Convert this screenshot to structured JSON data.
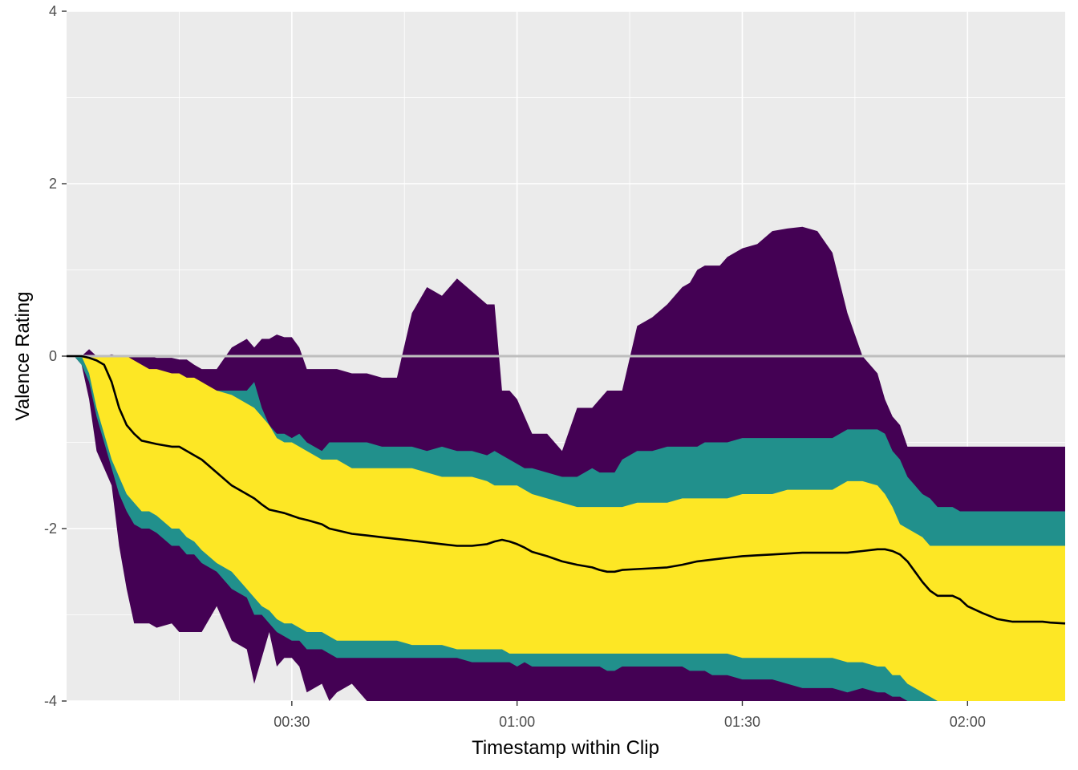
{
  "chart_data": {
    "type": "area",
    "xlabel": "Timestamp within Clip",
    "ylabel": "Valence Rating",
    "x_unit": "seconds",
    "xlim": [
      0,
      133
    ],
    "ylim": [
      -4,
      4
    ],
    "x_ticks": [
      {
        "value": 30,
        "label": "00:30"
      },
      {
        "value": 60,
        "label": "01:00"
      },
      {
        "value": 90,
        "label": "01:30"
      },
      {
        "value": 120,
        "label": "02:00"
      }
    ],
    "y_ticks": [
      {
        "value": -4,
        "label": "-4"
      },
      {
        "value": -2,
        "label": "-2"
      },
      {
        "value": 0,
        "label": "0"
      },
      {
        "value": 2,
        "label": "2"
      },
      {
        "value": 4,
        "label": "4"
      }
    ],
    "y_minor_gridlines": [
      -3,
      -1,
      1,
      3
    ],
    "x_minor_gridlines": [
      15,
      45,
      75,
      105
    ],
    "grid": true,
    "panel_background": "#EBEBEB",
    "reference_line": {
      "y": 0,
      "color": "#BEBEBE"
    },
    "x": [
      0,
      1,
      2,
      3,
      4,
      5,
      6,
      7,
      8,
      9,
      10,
      11,
      12,
      14,
      15,
      16,
      17,
      18,
      20,
      22,
      24,
      25,
      26,
      27,
      28,
      29,
      30,
      31,
      32,
      34,
      35,
      36,
      38,
      40,
      42,
      44,
      46,
      48,
      50,
      52,
      54,
      56,
      57,
      58,
      59,
      60,
      61,
      62,
      64,
      66,
      68,
      70,
      71,
      72,
      73,
      74,
      76,
      78,
      80,
      82,
      83,
      84,
      85,
      86,
      87,
      88,
      90,
      92,
      94,
      96,
      98,
      100,
      102,
      104,
      106,
      108,
      109,
      110,
      111,
      112,
      113,
      114,
      115,
      116,
      118,
      119,
      120,
      122,
      124,
      126,
      128,
      129,
      130,
      131,
      133
    ],
    "series": [
      {
        "role": "outer-band",
        "color": "#440154",
        "upper": [
          0,
          0,
          0,
          0.08,
          0,
          0,
          0.02,
          0,
          0,
          0,
          0,
          0,
          -0.02,
          -0.02,
          -0.04,
          -0.04,
          -0.1,
          -0.15,
          -0.15,
          0.1,
          0.2,
          0.1,
          0.2,
          0.2,
          0.25,
          0.22,
          0.22,
          0.1,
          -0.15,
          -0.15,
          -0.15,
          -0.15,
          -0.2,
          -0.2,
          -0.25,
          -0.25,
          0.5,
          0.8,
          0.7,
          0.9,
          0.75,
          0.6,
          0.6,
          -0.4,
          -0.4,
          -0.5,
          -0.7,
          -0.9,
          -0.9,
          -1.1,
          -0.6,
          -0.6,
          -0.5,
          -0.4,
          -0.4,
          -0.4,
          0.35,
          0.45,
          0.6,
          0.8,
          0.85,
          1.0,
          1.05,
          1.05,
          1.05,
          1.15,
          1.25,
          1.3,
          1.45,
          1.48,
          1.5,
          1.45,
          1.2,
          0.5,
          0,
          -0.2,
          -0.5,
          -0.7,
          -0.8,
          -1.05,
          -1.05,
          -1.05,
          -1.05,
          -1.05,
          -1.05,
          -1.05,
          -1.05,
          -1.05,
          -1.05,
          -1.05,
          -1.05,
          -1.05,
          -1.05,
          -1.05,
          -1.05
        ],
        "lower": [
          0,
          0,
          -0.1,
          -0.5,
          -1.1,
          -1.3,
          -1.5,
          -2.2,
          -2.7,
          -3.1,
          -3.1,
          -3.1,
          -3.15,
          -3.1,
          -3.2,
          -3.2,
          -3.2,
          -3.2,
          -2.9,
          -3.3,
          -3.4,
          -3.8,
          -3.5,
          -3.2,
          -3.6,
          -3.5,
          -3.5,
          -3.6,
          -3.9,
          -3.8,
          -4.0,
          -3.9,
          -3.8,
          -4.0,
          -4.0,
          -4.0,
          -4.0,
          -4.0,
          -4.0,
          -4.0,
          -4.0,
          -4.0,
          -4.0,
          -4.0,
          -4.0,
          -4.0,
          -4.0,
          -4.0,
          -4.0,
          -4.0,
          -4.0,
          -4.0,
          -4.0,
          -4.0,
          -4.0,
          -4.0,
          -4.0,
          -4.0,
          -4.0,
          -4.0,
          -4.0,
          -4.0,
          -4.0,
          -4.0,
          -4.0,
          -4.0,
          -4.0,
          -4.0,
          -4.0,
          -4.0,
          -4.0,
          -4.0,
          -4.0,
          -4.0,
          -4.0,
          -4.0,
          -4.0,
          -4.0,
          -4.0,
          -4.0,
          -4.0,
          -4.0,
          -4.0,
          -4.0,
          -4.0,
          -4.0,
          -4.0,
          -4.0,
          -4.0,
          -4.0,
          -4.0,
          -4.0,
          -4.0,
          -4.0,
          -4.0
        ]
      },
      {
        "role": "middle-band",
        "color": "#21908C",
        "upper": [
          0,
          0,
          0,
          0,
          0,
          0,
          0,
          0,
          0,
          -0.1,
          -0.2,
          -0.25,
          -0.25,
          -0.3,
          -0.3,
          -0.3,
          -0.3,
          -0.35,
          -0.4,
          -0.4,
          -0.4,
          -0.3,
          -0.6,
          -0.8,
          -0.9,
          -0.9,
          -0.95,
          -0.9,
          -1.0,
          -1.1,
          -1.0,
          -1.0,
          -1.0,
          -1.0,
          -1.05,
          -1.05,
          -1.05,
          -1.1,
          -1.05,
          -1.1,
          -1.1,
          -1.15,
          -1.1,
          -1.15,
          -1.2,
          -1.25,
          -1.3,
          -1.3,
          -1.35,
          -1.4,
          -1.4,
          -1.3,
          -1.35,
          -1.35,
          -1.35,
          -1.2,
          -1.1,
          -1.1,
          -1.05,
          -1.05,
          -1.05,
          -1.05,
          -1.0,
          -1.0,
          -1.0,
          -1.0,
          -0.95,
          -0.95,
          -0.95,
          -0.95,
          -0.95,
          -0.95,
          -0.95,
          -0.85,
          -0.85,
          -0.85,
          -0.9,
          -1.1,
          -1.2,
          -1.4,
          -1.5,
          -1.6,
          -1.65,
          -1.75,
          -1.75,
          -1.8,
          -1.8,
          -1.8,
          -1.8,
          -1.8,
          -1.8,
          -1.8,
          -1.8,
          -1.8,
          -1.8
        ],
        "lower": [
          0,
          0,
          -0.1,
          -0.3,
          -0.7,
          -1.0,
          -1.3,
          -1.6,
          -1.8,
          -1.95,
          -2.0,
          -2.0,
          -2.05,
          -2.2,
          -2.2,
          -2.3,
          -2.3,
          -2.4,
          -2.5,
          -2.7,
          -2.8,
          -3.0,
          -3.0,
          -3.1,
          -3.2,
          -3.25,
          -3.3,
          -3.3,
          -3.4,
          -3.4,
          -3.45,
          -3.5,
          -3.5,
          -3.5,
          -3.5,
          -3.5,
          -3.5,
          -3.5,
          -3.5,
          -3.5,
          -3.55,
          -3.55,
          -3.55,
          -3.55,
          -3.55,
          -3.6,
          -3.55,
          -3.6,
          -3.6,
          -3.6,
          -3.6,
          -3.6,
          -3.6,
          -3.65,
          -3.65,
          -3.6,
          -3.6,
          -3.6,
          -3.6,
          -3.6,
          -3.65,
          -3.65,
          -3.65,
          -3.7,
          -3.7,
          -3.7,
          -3.75,
          -3.75,
          -3.75,
          -3.8,
          -3.85,
          -3.85,
          -3.85,
          -3.9,
          -3.85,
          -3.9,
          -3.9,
          -3.95,
          -3.95,
          -4.0,
          -4.0,
          -4.0,
          -4.0,
          -4.0,
          -4.0,
          -4.0,
          -4.0,
          -4.0,
          -4.0,
          -4.0,
          -4.0,
          -4.0,
          -4.0,
          -4.0,
          -4.0
        ]
      },
      {
        "role": "inner-band",
        "color": "#FDE725",
        "upper": [
          0,
          0,
          0,
          0,
          0,
          0,
          0,
          0,
          0,
          -0.05,
          -0.1,
          -0.15,
          -0.15,
          -0.2,
          -0.2,
          -0.25,
          -0.25,
          -0.3,
          -0.4,
          -0.45,
          -0.55,
          -0.6,
          -0.7,
          -0.8,
          -0.95,
          -1.0,
          -1.0,
          -1.05,
          -1.1,
          -1.2,
          -1.2,
          -1.2,
          -1.3,
          -1.3,
          -1.3,
          -1.3,
          -1.3,
          -1.35,
          -1.4,
          -1.4,
          -1.4,
          -1.45,
          -1.5,
          -1.5,
          -1.5,
          -1.5,
          -1.55,
          -1.6,
          -1.65,
          -1.7,
          -1.75,
          -1.75,
          -1.75,
          -1.75,
          -1.75,
          -1.75,
          -1.7,
          -1.7,
          -1.7,
          -1.65,
          -1.65,
          -1.65,
          -1.65,
          -1.65,
          -1.65,
          -1.65,
          -1.6,
          -1.6,
          -1.6,
          -1.55,
          -1.55,
          -1.55,
          -1.55,
          -1.45,
          -1.45,
          -1.5,
          -1.6,
          -1.75,
          -1.95,
          -2.0,
          -2.05,
          -2.1,
          -2.2,
          -2.2,
          -2.2,
          -2.2,
          -2.2,
          -2.2,
          -2.2,
          -2.2,
          -2.2,
          -2.2,
          -2.2,
          -2.2,
          -2.2
        ],
        "lower": [
          0,
          0,
          0,
          -0.2,
          -0.6,
          -0.9,
          -1.2,
          -1.4,
          -1.6,
          -1.7,
          -1.8,
          -1.8,
          -1.85,
          -2.0,
          -2.0,
          -2.1,
          -2.15,
          -2.25,
          -2.4,
          -2.5,
          -2.7,
          -2.8,
          -2.9,
          -2.95,
          -3.05,
          -3.1,
          -3.1,
          -3.15,
          -3.2,
          -3.2,
          -3.25,
          -3.3,
          -3.3,
          -3.3,
          -3.3,
          -3.3,
          -3.35,
          -3.35,
          -3.35,
          -3.4,
          -3.4,
          -3.4,
          -3.4,
          -3.4,
          -3.45,
          -3.45,
          -3.45,
          -3.45,
          -3.45,
          -3.45,
          -3.45,
          -3.45,
          -3.45,
          -3.45,
          -3.45,
          -3.45,
          -3.45,
          -3.45,
          -3.45,
          -3.45,
          -3.45,
          -3.45,
          -3.45,
          -3.45,
          -3.45,
          -3.45,
          -3.5,
          -3.5,
          -3.5,
          -3.5,
          -3.5,
          -3.5,
          -3.5,
          -3.55,
          -3.55,
          -3.6,
          -3.6,
          -3.7,
          -3.7,
          -3.8,
          -3.85,
          -3.9,
          -3.95,
          -4.0,
          -4.0,
          -4.0,
          -4.0,
          -4.0,
          -4.0,
          -4.0,
          -4.0,
          -4.0,
          -4.0,
          -4.0,
          -4.0
        ]
      },
      {
        "role": "mean-line",
        "color": "#000000",
        "values": [
          0,
          0,
          0,
          -0.02,
          -0.05,
          -0.1,
          -0.3,
          -0.6,
          -0.8,
          -0.9,
          -0.98,
          -1.0,
          -1.02,
          -1.05,
          -1.05,
          -1.1,
          -1.15,
          -1.2,
          -1.35,
          -1.5,
          -1.6,
          -1.65,
          -1.72,
          -1.78,
          -1.8,
          -1.82,
          -1.85,
          -1.88,
          -1.9,
          -1.95,
          -2.0,
          -2.02,
          -2.06,
          -2.08,
          -2.1,
          -2.12,
          -2.14,
          -2.16,
          -2.18,
          -2.2,
          -2.2,
          -2.18,
          -2.15,
          -2.13,
          -2.15,
          -2.18,
          -2.22,
          -2.27,
          -2.32,
          -2.38,
          -2.42,
          -2.45,
          -2.48,
          -2.5,
          -2.5,
          -2.48,
          -2.47,
          -2.46,
          -2.45,
          -2.42,
          -2.4,
          -2.38,
          -2.37,
          -2.36,
          -2.35,
          -2.34,
          -2.32,
          -2.31,
          -2.3,
          -2.29,
          -2.28,
          -2.28,
          -2.28,
          -2.28,
          -2.26,
          -2.24,
          -2.24,
          -2.26,
          -2.3,
          -2.38,
          -2.5,
          -2.62,
          -2.72,
          -2.78,
          -2.78,
          -2.82,
          -2.9,
          -2.98,
          -3.05,
          -3.08,
          -3.08,
          -3.08,
          -3.08,
          -3.09,
          -3.1
        ]
      }
    ]
  }
}
